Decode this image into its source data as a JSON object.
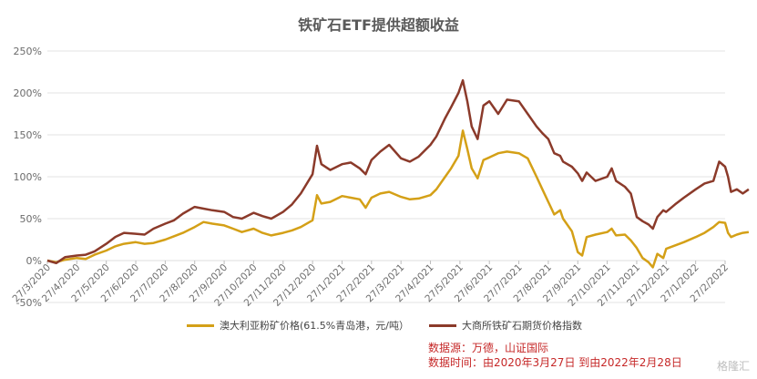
{
  "title": "铁矿石ETF提供超额收益",
  "source_line1": "数据源：万德，山证国际",
  "source_line2": "数据时间：由2020年3月27日 到由2022年2月28日",
  "watermark": "格隆汇",
  "colors": {
    "series1": "#d4a017",
    "series2": "#8b3a2a",
    "grid": "#e3e3e3",
    "axis_text": "#6b6b6b"
  },
  "chart_data": {
    "type": "line",
    "ylim": [
      -50,
      250
    ],
    "yticks": [
      -50,
      0,
      50,
      100,
      150,
      200,
      250
    ],
    "ytick_labels": [
      "-50%",
      "0%",
      "50%",
      "100%",
      "150%",
      "200%",
      "250%"
    ],
    "xtick_labels": [
      "27/3/2020",
      "27/4/2020",
      "27/5/2020",
      "27/6/2020",
      "27/7/2020",
      "27/8/2020",
      "27/9/2020",
      "27/10/2020",
      "27/11/2020",
      "27/12/2020",
      "27/1/2021",
      "27/2/2021",
      "27/3/2021",
      "27/4/2021",
      "27/5/2021",
      "27/6/2021",
      "27/7/2021",
      "27/8/2021",
      "27/9/2021",
      "27/10/2021",
      "27/11/2021",
      "27/12/2021",
      "27/1/2022",
      "27/2/2022"
    ],
    "series": [
      {
        "name": "澳大利亚粉矿价格(61.5%青岛港，元/吨）",
        "points": [
          [
            0,
            0
          ],
          [
            0.3,
            -2
          ],
          [
            0.6,
            1
          ],
          [
            1,
            3
          ],
          [
            1.3,
            2
          ],
          [
            1.6,
            7
          ],
          [
            2,
            12
          ],
          [
            2.3,
            17
          ],
          [
            2.6,
            20
          ],
          [
            3,
            22
          ],
          [
            3.3,
            20
          ],
          [
            3.6,
            21
          ],
          [
            4,
            25
          ],
          [
            4.3,
            29
          ],
          [
            4.6,
            33
          ],
          [
            5,
            40
          ],
          [
            5.3,
            46
          ],
          [
            5.6,
            44
          ],
          [
            6,
            42
          ],
          [
            6.3,
            38
          ],
          [
            6.6,
            34
          ],
          [
            7,
            38
          ],
          [
            7.3,
            33
          ],
          [
            7.6,
            30
          ],
          [
            8,
            33
          ],
          [
            8.3,
            36
          ],
          [
            8.6,
            40
          ],
          [
            9,
            48
          ],
          [
            9.15,
            78
          ],
          [
            9.3,
            68
          ],
          [
            9.6,
            70
          ],
          [
            10,
            77
          ],
          [
            10.3,
            75
          ],
          [
            10.6,
            73
          ],
          [
            10.8,
            63
          ],
          [
            11,
            75
          ],
          [
            11.3,
            80
          ],
          [
            11.6,
            82
          ],
          [
            12,
            76
          ],
          [
            12.3,
            73
          ],
          [
            12.6,
            74
          ],
          [
            13,
            78
          ],
          [
            13.2,
            85
          ],
          [
            13.5,
            100
          ],
          [
            13.7,
            110
          ],
          [
            13.95,
            125
          ],
          [
            14.1,
            155
          ],
          [
            14.25,
            133
          ],
          [
            14.4,
            110
          ],
          [
            14.6,
            98
          ],
          [
            14.8,
            120
          ],
          [
            15,
            123
          ],
          [
            15.3,
            128
          ],
          [
            15.6,
            130
          ],
          [
            16,
            128
          ],
          [
            16.3,
            122
          ],
          [
            16.6,
            100
          ],
          [
            16.8,
            85
          ],
          [
            17,
            70
          ],
          [
            17.2,
            55
          ],
          [
            17.4,
            60
          ],
          [
            17.5,
            50
          ],
          [
            17.8,
            35
          ],
          [
            18,
            10
          ],
          [
            18.15,
            6
          ],
          [
            18.3,
            28
          ],
          [
            18.6,
            31
          ],
          [
            19,
            34
          ],
          [
            19.15,
            38
          ],
          [
            19.3,
            30
          ],
          [
            19.6,
            31
          ],
          [
            19.8,
            24
          ],
          [
            20,
            15
          ],
          [
            20.2,
            3
          ],
          [
            20.4,
            -2
          ],
          [
            20.55,
            -8
          ],
          [
            20.7,
            8
          ],
          [
            20.9,
            3
          ],
          [
            21,
            14
          ],
          [
            21.3,
            18
          ],
          [
            21.6,
            22
          ],
          [
            22,
            28
          ],
          [
            22.3,
            33
          ],
          [
            22.6,
            40
          ],
          [
            22.8,
            46
          ],
          [
            23,
            45
          ],
          [
            23.1,
            33
          ],
          [
            23.2,
            28
          ],
          [
            23.4,
            31
          ],
          [
            23.6,
            33
          ],
          [
            23.8,
            34
          ]
        ]
      },
      {
        "name": "大商所铁矿石期货价格指数",
        "points": [
          [
            0,
            0
          ],
          [
            0.3,
            -3
          ],
          [
            0.6,
            4
          ],
          [
            1,
            6
          ],
          [
            1.3,
            7
          ],
          [
            1.6,
            11
          ],
          [
            2,
            20
          ],
          [
            2.3,
            28
          ],
          [
            2.6,
            33
          ],
          [
            3,
            32
          ],
          [
            3.3,
            31
          ],
          [
            3.6,
            38
          ],
          [
            4,
            44
          ],
          [
            4.3,
            48
          ],
          [
            4.6,
            56
          ],
          [
            5,
            64
          ],
          [
            5.3,
            62
          ],
          [
            5.6,
            60
          ],
          [
            6,
            58
          ],
          [
            6.3,
            52
          ],
          [
            6.6,
            50
          ],
          [
            7,
            57
          ],
          [
            7.3,
            53
          ],
          [
            7.6,
            50
          ],
          [
            8,
            58
          ],
          [
            8.3,
            67
          ],
          [
            8.6,
            80
          ],
          [
            9,
            103
          ],
          [
            9.15,
            137
          ],
          [
            9.3,
            115
          ],
          [
            9.6,
            108
          ],
          [
            10,
            115
          ],
          [
            10.3,
            117
          ],
          [
            10.6,
            110
          ],
          [
            10.8,
            103
          ],
          [
            11,
            120
          ],
          [
            11.3,
            130
          ],
          [
            11.6,
            138
          ],
          [
            12,
            122
          ],
          [
            12.3,
            118
          ],
          [
            12.6,
            124
          ],
          [
            13,
            138
          ],
          [
            13.2,
            148
          ],
          [
            13.5,
            170
          ],
          [
            13.7,
            183
          ],
          [
            13.95,
            200
          ],
          [
            14.1,
            215
          ],
          [
            14.25,
            190
          ],
          [
            14.4,
            160
          ],
          [
            14.6,
            145
          ],
          [
            14.8,
            185
          ],
          [
            15,
            190
          ],
          [
            15.3,
            175
          ],
          [
            15.6,
            192
          ],
          [
            16,
            190
          ],
          [
            16.3,
            175
          ],
          [
            16.6,
            160
          ],
          [
            16.8,
            152
          ],
          [
            17,
            145
          ],
          [
            17.2,
            128
          ],
          [
            17.4,
            125
          ],
          [
            17.5,
            118
          ],
          [
            17.8,
            112
          ],
          [
            18,
            104
          ],
          [
            18.15,
            95
          ],
          [
            18.3,
            105
          ],
          [
            18.6,
            95
          ],
          [
            19,
            100
          ],
          [
            19.15,
            110
          ],
          [
            19.3,
            95
          ],
          [
            19.6,
            88
          ],
          [
            19.8,
            80
          ],
          [
            20,
            52
          ],
          [
            20.2,
            47
          ],
          [
            20.4,
            43
          ],
          [
            20.55,
            38
          ],
          [
            20.7,
            52
          ],
          [
            20.9,
            60
          ],
          [
            21,
            58
          ],
          [
            21.3,
            67
          ],
          [
            21.6,
            75
          ],
          [
            22,
            85
          ],
          [
            22.3,
            92
          ],
          [
            22.6,
            95
          ],
          [
            22.8,
            118
          ],
          [
            23,
            112
          ],
          [
            23.1,
            100
          ],
          [
            23.2,
            82
          ],
          [
            23.4,
            85
          ],
          [
            23.6,
            80
          ],
          [
            23.8,
            85
          ]
        ]
      }
    ]
  }
}
